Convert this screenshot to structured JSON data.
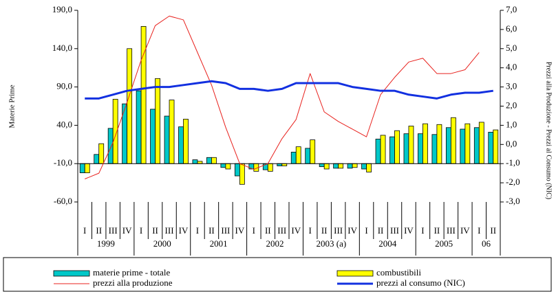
{
  "chart_data": {
    "type": "combo",
    "y_label": "Materie Prime",
    "y2_label": "Prezzi alla Produzione - Prezzi al Consumo (NIC)",
    "categories": [
      "I",
      "II",
      "III",
      "IV",
      "I",
      "II",
      "III",
      "IV",
      "I",
      "II",
      "III",
      "IV",
      "I",
      "II",
      "III",
      "IV",
      "I",
      "II",
      "III",
      "IV",
      "I",
      "II",
      "III",
      "IV",
      "I",
      "II",
      "III",
      "IV",
      "I",
      "II"
    ],
    "years": [
      "1999",
      "2000",
      "2001",
      "2002",
      "2003 (a)",
      "2004",
      "2005",
      "06"
    ],
    "ylim": [
      -60,
      190
    ],
    "yticks": [
      {
        "value": -60,
        "label": "-60,0"
      },
      {
        "value": -10,
        "label": "-10,0"
      },
      {
        "value": 40,
        "label": "40,0"
      },
      {
        "value": 90,
        "label": "90,0"
      },
      {
        "value": 140,
        "label": "140,0"
      },
      {
        "value": 190,
        "label": "190,0"
      }
    ],
    "y2lim": [
      -3,
      7
    ],
    "y2ticks": [
      {
        "value": -3,
        "label": "-3,0"
      },
      {
        "value": -2,
        "label": "-2,0"
      },
      {
        "value": -1,
        "label": "-1,0"
      },
      {
        "value": 0,
        "label": "0,0"
      },
      {
        "value": 1,
        "label": "1,0"
      },
      {
        "value": 2,
        "label": "2,0"
      },
      {
        "value": 3,
        "label": "3,0"
      },
      {
        "value": 4,
        "label": "4,0"
      },
      {
        "value": 5,
        "label": "5,0"
      },
      {
        "value": 6,
        "label": "6,0"
      },
      {
        "value": 7,
        "label": "7,0"
      }
    ],
    "x_axis_at": -10,
    "series": [
      {
        "name": "materie prime - totale",
        "type": "bar",
        "color": "#00c8c8",
        "values": [
          -22,
          2,
          36,
          68,
          85,
          61,
          52,
          38,
          -5,
          -2,
          -15,
          -26,
          -17,
          -18,
          -13,
          5,
          10,
          -14,
          -16,
          -16,
          -17,
          22,
          25,
          29,
          29,
          28,
          37,
          35,
          37,
          31
        ]
      },
      {
        "name": "combustibili",
        "type": "bar",
        "color": "#ffff00",
        "values": [
          -22,
          16,
          74,
          140,
          169,
          101,
          73,
          48,
          -7,
          -2,
          -17,
          -37,
          -20,
          -20,
          -13,
          12,
          21,
          -17,
          -16,
          -15,
          -21,
          27,
          33,
          39,
          42,
          41,
          50,
          42,
          44,
          34
        ]
      },
      {
        "name": "prezzi alla produzione",
        "type": "line",
        "axis": "y2",
        "color": "#e8201c",
        "width": 1,
        "values": [
          -1.8,
          -1.5,
          0.1,
          2.2,
          4.4,
          6.2,
          6.7,
          6.5,
          4.8,
          3.1,
          0.9,
          -1.0,
          -1.3,
          -1.0,
          0.3,
          1.3,
          3.7,
          1.7,
          1.2,
          0.8,
          0.4,
          2.6,
          3.5,
          4.3,
          4.5,
          3.7,
          3.7,
          3.9,
          4.8,
          null
        ]
      },
      {
        "name": "prezzi al consumo (NIC)",
        "type": "line",
        "axis": "y2",
        "color": "#1230e0",
        "width": 3,
        "values": [
          2.4,
          2.4,
          2.6,
          2.8,
          2.9,
          3.0,
          3.0,
          3.1,
          3.2,
          3.3,
          3.2,
          2.9,
          2.9,
          2.8,
          2.9,
          3.2,
          3.2,
          3.2,
          3.2,
          3.0,
          2.9,
          2.8,
          2.8,
          2.6,
          2.5,
          2.4,
          2.6,
          2.7,
          2.7,
          2.8
        ]
      }
    ]
  }
}
